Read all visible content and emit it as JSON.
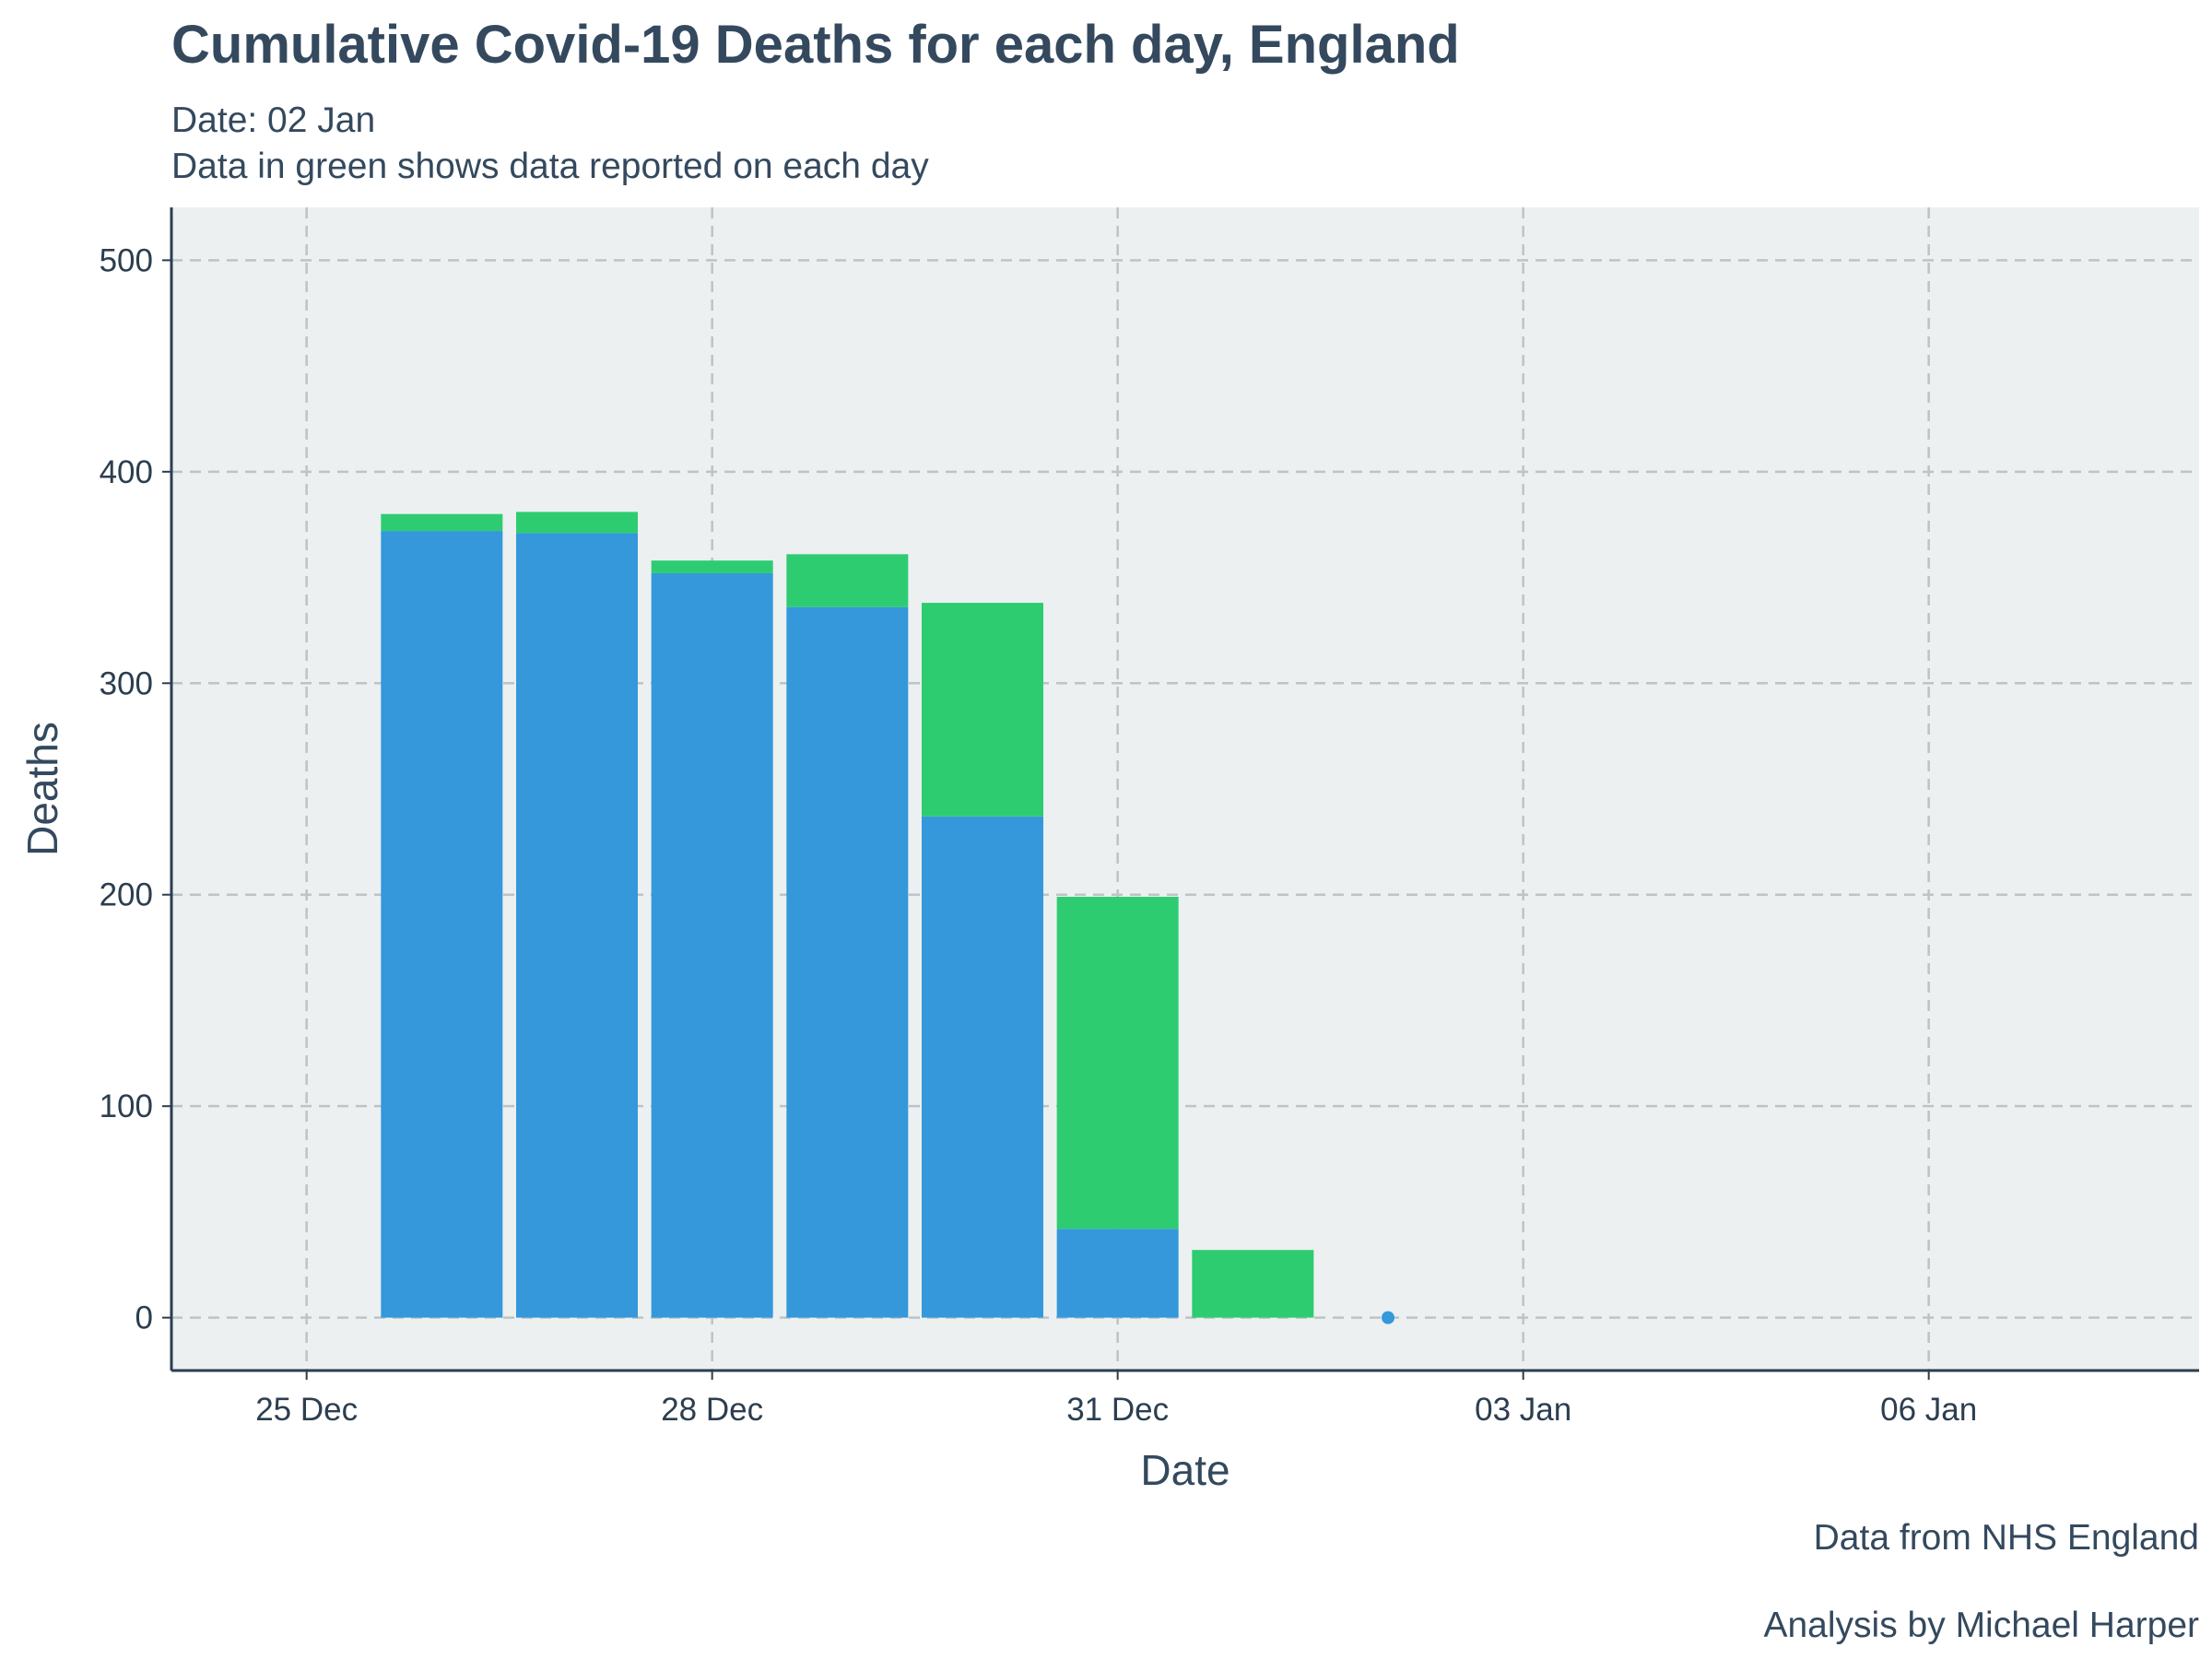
{
  "chart_data": {
    "type": "bar",
    "title": "Cumulative Covid-19 Deaths for each day, England",
    "subtitle_lines": [
      "Date: 02 Jan",
      "Data in green shows data reported on each day"
    ],
    "xlabel": "Date",
    "ylabel": "Deaths",
    "x_ticks": [
      "25 Dec",
      "28 Dec",
      "31 Dec",
      "03 Jan",
      "06 Jan"
    ],
    "y_ticks": [
      "0",
      "100",
      "200",
      "300",
      "400",
      "500"
    ],
    "ylim": [
      -25,
      525
    ],
    "xlim": [
      "2020-12-24",
      "2021-01-08"
    ],
    "categories": [
      "2020-12-26",
      "2020-12-27",
      "2020-12-28",
      "2020-12-29",
      "2020-12-30",
      "2020-12-31",
      "2021-01-01",
      "2021-01-02"
    ],
    "series": [
      {
        "color": "#3498db",
        "values": [
          372,
          371,
          352,
          336,
          237,
          42,
          0,
          0
        ]
      },
      {
        "color": "#2ecc71",
        "values": [
          8,
          10,
          6,
          25,
          101,
          157,
          32,
          0
        ]
      }
    ],
    "point": {
      "x": "2021-01-02",
      "y": 0,
      "color": "#3498db"
    },
    "grid": true,
    "legend": "none",
    "captions": [
      "Data from NHS England",
      "Analysis by Michael Harper"
    ],
    "colors": {
      "panel": "#ecf0f1",
      "grid": "#bdc3c7",
      "axis": "#2c3e50",
      "text": "#34495e"
    }
  }
}
